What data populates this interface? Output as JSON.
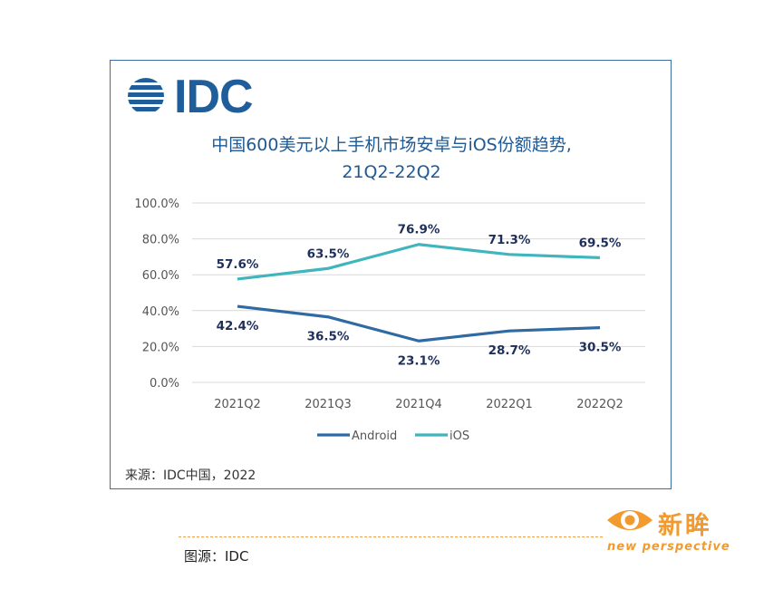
{
  "logo": {
    "text": "IDC"
  },
  "chart_data": {
    "type": "line",
    "title_line1": "中国600美元以上手机市场安卓与iOS份额趋势,",
    "title_line2": "21Q2-22Q2",
    "categories": [
      "2021Q2",
      "2021Q3",
      "2021Q4",
      "2022Q1",
      "2022Q2"
    ],
    "y_ticks": [
      "0.0%",
      "20.0%",
      "40.0%",
      "60.0%",
      "80.0%",
      "100.0%"
    ],
    "ylim": [
      0,
      100
    ],
    "series": [
      {
        "name": "Android",
        "color": "#2f6aa3",
        "values": [
          42.4,
          36.5,
          23.1,
          28.7,
          30.5
        ],
        "labels": [
          "42.4%",
          "36.5%",
          "23.1%",
          "28.7%",
          "30.5%"
        ]
      },
      {
        "name": "iOS",
        "color": "#40b5bd",
        "values": [
          57.6,
          63.5,
          76.9,
          71.3,
          69.5
        ],
        "labels": [
          "57.6%",
          "63.5%",
          "76.9%",
          "71.3%",
          "69.5%"
        ]
      }
    ],
    "legend_position": "bottom-center",
    "source": "来源：IDC中国，2022"
  },
  "caption": "图源：IDC",
  "brand": {
    "name": "新眸",
    "sub": "new perspective",
    "color": "#f29a2e"
  }
}
